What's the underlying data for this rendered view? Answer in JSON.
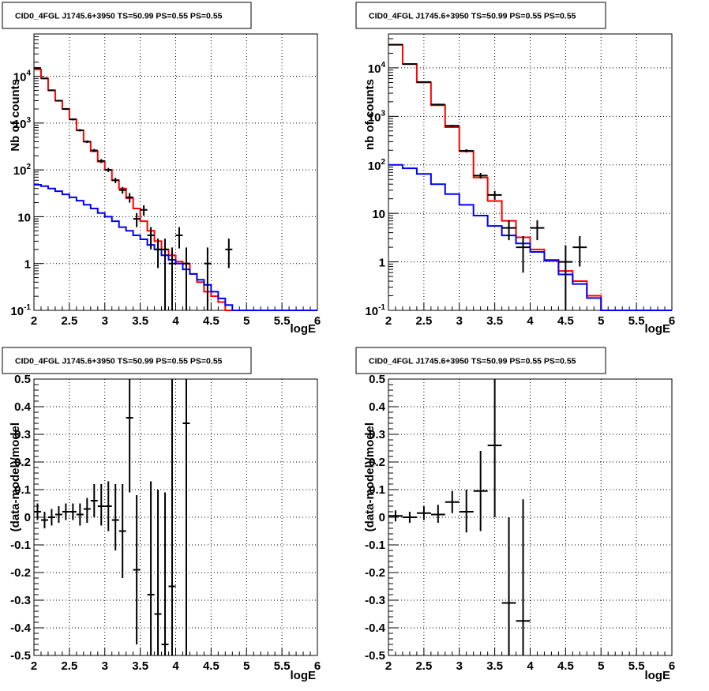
{
  "chart_data": [
    {
      "type": "line",
      "title": "CID0_4FGL J1745.6+3950 TS=50.99 PS=0.55 PS=0.55",
      "xlabel": "logE",
      "ylabel": "Nb of counts",
      "xlim": [
        2,
        6
      ],
      "ylim": [
        0.1,
        80000
      ],
      "yscale": "log",
      "grid": true,
      "x_ticks": [
        "2",
        "2.5",
        "3",
        "3.5",
        "4",
        "4.5",
        "5",
        "5.5",
        "6"
      ],
      "y_ticks": [
        {
          "value": 0.1,
          "label": "10^-1"
        },
        {
          "value": 1,
          "label": "1"
        },
        {
          "value": 10,
          "label": "10"
        },
        {
          "value": 100,
          "label": "10^2"
        },
        {
          "value": 1000,
          "label": "10^3"
        },
        {
          "value": 10000,
          "label": "10^4"
        }
      ],
      "bin_edges": [
        2.0,
        2.1,
        2.2,
        2.3,
        2.4,
        2.5,
        2.6,
        2.7,
        2.8,
        2.9,
        3.0,
        3.1,
        3.2,
        3.3,
        3.4,
        3.5,
        3.6,
        3.7,
        3.8,
        3.9,
        4.0,
        4.1,
        4.2,
        4.3,
        4.4,
        4.5,
        4.6,
        4.7,
        4.8,
        4.9,
        5.0,
        5.1,
        5.2,
        5.3,
        5.4,
        5.5,
        5.6,
        5.7,
        5.8,
        5.9,
        6.0
      ],
      "series": [
        {
          "color": "#ff0000",
          "style": "step",
          "values": [
            14000,
            9000,
            5000,
            3000,
            2000,
            1200,
            700,
            400,
            250,
            150,
            100,
            60,
            40,
            25,
            15,
            8,
            5,
            3,
            2,
            1.5,
            1.1,
            1.0,
            0.6,
            0.4,
            0.25,
            0.2,
            0.15,
            0.1,
            0.1,
            0.1,
            0.1,
            0.1,
            0.1,
            0.1,
            0.1,
            0.1,
            0.1,
            0.1,
            0.1,
            0.1
          ]
        },
        {
          "color": "#0000ff",
          "style": "step",
          "values": [
            48,
            45,
            40,
            35,
            30,
            26,
            22,
            18,
            15,
            12,
            10,
            8,
            6,
            5,
            4,
            3.3,
            2.5,
            2,
            1.5,
            1.2,
            1.0,
            0.75,
            0.6,
            0.45,
            0.35,
            0.25,
            0.18,
            0.13,
            0.1,
            0.1,
            0.1,
            0.1,
            0.1,
            0.1,
            0.1,
            0.1,
            0.1,
            0.1,
            0.1,
            0.1
          ]
        }
      ],
      "points": [
        {
          "x": 2.05,
          "y": 15000,
          "ylo": 14500,
          "yhi": 15500
        },
        {
          "x": 2.15,
          "y": 9000,
          "ylo": 8700,
          "yhi": 9300
        },
        {
          "x": 2.25,
          "y": 5000,
          "ylo": 4800,
          "yhi": 5200
        },
        {
          "x": 2.35,
          "y": 3000,
          "ylo": 2880,
          "yhi": 3120
        },
        {
          "x": 2.45,
          "y": 2000,
          "ylo": 1900,
          "yhi": 2100
        },
        {
          "x": 2.55,
          "y": 1200,
          "ylo": 1140,
          "yhi": 1260
        },
        {
          "x": 2.65,
          "y": 700,
          "ylo": 660,
          "yhi": 740
        },
        {
          "x": 2.75,
          "y": 400,
          "ylo": 375,
          "yhi": 425
        },
        {
          "x": 2.85,
          "y": 260,
          "ylo": 240,
          "yhi": 280
        },
        {
          "x": 2.95,
          "y": 155,
          "ylo": 140,
          "yhi": 170
        },
        {
          "x": 3.05,
          "y": 100,
          "ylo": 90,
          "yhi": 110
        },
        {
          "x": 3.15,
          "y": 60,
          "ylo": 52,
          "yhi": 68
        },
        {
          "x": 3.25,
          "y": 37,
          "ylo": 31,
          "yhi": 43
        },
        {
          "x": 3.35,
          "y": 26,
          "ylo": 20,
          "yhi": 32
        },
        {
          "x": 3.45,
          "y": 9,
          "ylo": 6,
          "yhi": 12
        },
        {
          "x": 3.55,
          "y": 14,
          "ylo": 10.5,
          "yhi": 17.5
        },
        {
          "x": 3.65,
          "y": 4,
          "ylo": 2,
          "yhi": 6
        },
        {
          "x": 3.75,
          "y": 2,
          "ylo": 0.8,
          "yhi": 3.4
        },
        {
          "x": 3.85,
          "y": 2,
          "ylo": 0.1,
          "yhi": 3.4
        },
        {
          "x": 3.95,
          "y": 1,
          "ylo": 0.1,
          "yhi": 2.2
        },
        {
          "x": 4.05,
          "y": 4,
          "ylo": 2.1,
          "yhi": 6
        },
        {
          "x": 4.15,
          "y": 1,
          "ylo": 0.1,
          "yhi": 2.2
        },
        {
          "x": 4.45,
          "y": 1,
          "ylo": 0.1,
          "yhi": 2.2
        },
        {
          "x": 4.75,
          "y": 2,
          "ylo": 0.8,
          "yhi": 3.4
        }
      ]
    },
    {
      "type": "line",
      "title": "CID0_4FGL J1745.6+3950 TS=50.99 PS=0.55 PS=0.55",
      "xlabel": "logE",
      "ylabel": "nb of counts",
      "xlim": [
        2,
        6
      ],
      "ylim": [
        0.1,
        50000
      ],
      "yscale": "log",
      "grid": true,
      "x_ticks": [
        "2",
        "2.5",
        "3",
        "3.5",
        "4",
        "4.5",
        "5",
        "5.5",
        "6"
      ],
      "y_ticks": [
        {
          "value": 0.1,
          "label": "10^-1"
        },
        {
          "value": 1,
          "label": "1"
        },
        {
          "value": 10,
          "label": "10"
        },
        {
          "value": 100,
          "label": "10^2"
        },
        {
          "value": 1000,
          "label": "10^3"
        },
        {
          "value": 10000,
          "label": "10^4"
        }
      ],
      "bin_edges": [
        2.0,
        2.2,
        2.4,
        2.6,
        2.8,
        3.0,
        3.2,
        3.4,
        3.6,
        3.8,
        4.0,
        4.2,
        4.4,
        4.6,
        4.8,
        5.0,
        5.2,
        5.4,
        5.6,
        5.8,
        6.0
      ],
      "series": [
        {
          "color": "#ff0000",
          "style": "step",
          "values": [
            30000,
            12000,
            5000,
            1700,
            600,
            190,
            55,
            18,
            7,
            3.2,
            1.8,
            1.1,
            0.65,
            0.4,
            0.2,
            0.1,
            0.1,
            0.1,
            0.1,
            0.1
          ]
        },
        {
          "color": "#0000ff",
          "style": "step",
          "values": [
            100,
            85,
            65,
            40,
            25,
            15,
            9,
            5.5,
            3.5,
            2.4,
            1.6,
            1.05,
            0.55,
            0.35,
            0.18,
            0.1,
            0.1,
            0.1,
            0.1,
            0.1
          ]
        }
      ],
      "points": [
        {
          "x": 2.1,
          "y": 30000,
          "ylo": 29500,
          "yhi": 30500
        },
        {
          "x": 2.3,
          "y": 12000,
          "ylo": 11800,
          "yhi": 12200
        },
        {
          "x": 2.5,
          "y": 5100,
          "ylo": 4950,
          "yhi": 5250
        },
        {
          "x": 2.7,
          "y": 1750,
          "ylo": 1680,
          "yhi": 1820
        },
        {
          "x": 2.9,
          "y": 640,
          "ylo": 610,
          "yhi": 670
        },
        {
          "x": 3.1,
          "y": 195,
          "ylo": 180,
          "yhi": 210
        },
        {
          "x": 3.3,
          "y": 60,
          "ylo": 52,
          "yhi": 68
        },
        {
          "x": 3.5,
          "y": 24,
          "ylo": 19,
          "yhi": 29
        },
        {
          "x": 3.7,
          "y": 5,
          "ylo": 2.8,
          "yhi": 7.2
        },
        {
          "x": 3.9,
          "y": 2,
          "ylo": 0.6,
          "yhi": 3.4
        },
        {
          "x": 4.1,
          "y": 5,
          "ylo": 2.8,
          "yhi": 7.2
        },
        {
          "x": 4.5,
          "y": 1,
          "ylo": 0.1,
          "yhi": 2.2
        },
        {
          "x": 4.7,
          "y": 2,
          "ylo": 0.8,
          "yhi": 3.4
        }
      ]
    },
    {
      "type": "scatter",
      "title": "CID0_4FGL J1745.6+3950 TS=50.99 PS=0.55 PS=0.55",
      "xlabel": "logE",
      "ylabel": "(data-model)/model",
      "xlim": [
        2,
        6
      ],
      "ylim": [
        -0.5,
        0.5
      ],
      "grid": true,
      "x_ticks": [
        "2",
        "2.5",
        "3",
        "3.5",
        "4",
        "4.5",
        "5",
        "5.5",
        "6"
      ],
      "y_ticks": [
        "-0.5",
        "-0.4",
        "-0.3",
        "-0.2",
        "-0.1",
        "0",
        "0.1",
        "0.2",
        "0.3",
        "0.4",
        "0.5"
      ],
      "points": [
        {
          "x": 2.05,
          "y": 0.02,
          "ylo": -0.01,
          "yhi": 0.05,
          "xerr": 0.05
        },
        {
          "x": 2.15,
          "y": -0.01,
          "ylo": -0.04,
          "yhi": 0.02,
          "xerr": 0.05
        },
        {
          "x": 2.25,
          "y": 0.0,
          "ylo": -0.03,
          "yhi": 0.03,
          "xerr": 0.05
        },
        {
          "x": 2.35,
          "y": 0.01,
          "ylo": -0.02,
          "yhi": 0.04,
          "xerr": 0.05
        },
        {
          "x": 2.45,
          "y": 0.02,
          "ylo": -0.01,
          "yhi": 0.05,
          "xerr": 0.05
        },
        {
          "x": 2.55,
          "y": 0.02,
          "ylo": -0.01,
          "yhi": 0.05,
          "xerr": 0.05
        },
        {
          "x": 2.65,
          "y": 0.01,
          "ylo": -0.03,
          "yhi": 0.05,
          "xerr": 0.05
        },
        {
          "x": 2.75,
          "y": 0.03,
          "ylo": -0.02,
          "yhi": 0.07,
          "xerr": 0.05
        },
        {
          "x": 2.85,
          "y": 0.06,
          "ylo": 0.0,
          "yhi": 0.12,
          "xerr": 0.05
        },
        {
          "x": 2.95,
          "y": 0.04,
          "ylo": -0.03,
          "yhi": 0.12,
          "xerr": 0.05
        },
        {
          "x": 3.05,
          "y": 0.04,
          "ylo": -0.05,
          "yhi": 0.13,
          "xerr": 0.05
        },
        {
          "x": 3.15,
          "y": -0.01,
          "ylo": -0.12,
          "yhi": 0.12,
          "xerr": 0.05
        },
        {
          "x": 3.25,
          "y": -0.05,
          "ylo": -0.22,
          "yhi": 0.12,
          "xerr": 0.05
        },
        {
          "x": 3.35,
          "y": 0.36,
          "ylo": 0.09,
          "yhi": 0.5,
          "xerr": 0.05
        },
        {
          "x": 3.45,
          "y": -0.19,
          "ylo": -0.46,
          "yhi": 0.08,
          "xerr": 0.05
        },
        {
          "x": 3.65,
          "y": -0.28,
          "ylo": -0.5,
          "yhi": 0.13,
          "xerr": 0.05
        },
        {
          "x": 3.75,
          "y": -0.35,
          "ylo": -0.5,
          "yhi": 0.1,
          "xerr": 0.05
        },
        {
          "x": 3.85,
          "y": -0.46,
          "ylo": -0.5,
          "yhi": 0.09,
          "xerr": 0.05
        },
        {
          "x": 3.95,
          "y": -0.25,
          "ylo": -0.5,
          "yhi": 0.5,
          "xerr": 0.05
        },
        {
          "x": 4.15,
          "y": 0.34,
          "ylo": -0.5,
          "yhi": 0.5,
          "xerr": 0.05
        }
      ]
    },
    {
      "type": "scatter",
      "title": "CID0_4FGL J1745.6+3950 TS=50.99 PS=0.55 PS=0.55",
      "xlabel": "logE",
      "ylabel": "(data-model)/model",
      "xlim": [
        2,
        6
      ],
      "ylim": [
        -0.5,
        0.5
      ],
      "grid": true,
      "x_ticks": [
        "2",
        "2.5",
        "3",
        "3.5",
        "4",
        "4.5",
        "5",
        "5.5",
        "6"
      ],
      "y_ticks": [
        "-0.5",
        "-0.4",
        "-0.3",
        "-0.2",
        "-0.1",
        "0",
        "0.1",
        "0.2",
        "0.3",
        "0.4",
        "0.5"
      ],
      "points": [
        {
          "x": 2.1,
          "y": 0.005,
          "ylo": -0.015,
          "yhi": 0.025,
          "xerr": 0.1
        },
        {
          "x": 2.3,
          "y": 0.0,
          "ylo": -0.02,
          "yhi": 0.02,
          "xerr": 0.1
        },
        {
          "x": 2.5,
          "y": 0.015,
          "ylo": -0.01,
          "yhi": 0.04,
          "xerr": 0.1
        },
        {
          "x": 2.7,
          "y": 0.01,
          "ylo": -0.02,
          "yhi": 0.045,
          "xerr": 0.1
        },
        {
          "x": 2.9,
          "y": 0.055,
          "ylo": 0.015,
          "yhi": 0.095,
          "xerr": 0.1
        },
        {
          "x": 3.1,
          "y": 0.02,
          "ylo": -0.055,
          "yhi": 0.1,
          "xerr": 0.1
        },
        {
          "x": 3.3,
          "y": 0.095,
          "ylo": -0.05,
          "yhi": 0.24,
          "xerr": 0.1
        },
        {
          "x": 3.5,
          "y": 0.26,
          "ylo": 0.0,
          "yhi": 0.5,
          "xerr": 0.1
        },
        {
          "x": 3.7,
          "y": -0.31,
          "ylo": -0.5,
          "yhi": 0.0,
          "xerr": 0.1
        },
        {
          "x": 3.9,
          "y": -0.375,
          "ylo": -0.5,
          "yhi": 0.065,
          "xerr": 0.1
        }
      ]
    }
  ]
}
